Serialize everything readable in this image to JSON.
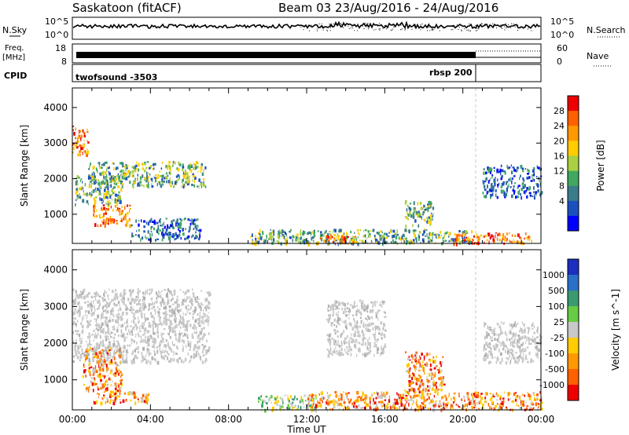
{
  "header": {
    "station": "Saskatoon (fitACF)",
    "beam": "Beam 03",
    "date_range": "23/Aug/2016 - 24/Aug/2016"
  },
  "left_labels": {
    "nsky": "N.Sky",
    "freq_line1": "Freq.",
    "freq_line2": "[MHz]",
    "cpid": "CPID"
  },
  "right_labels": {
    "nsearch": "N.Search",
    "nave": "Nave"
  },
  "noise_axis": {
    "top": "10^5",
    "bottom": "10^0"
  },
  "freq_axis": {
    "left_ticks": [
      "18",
      "8"
    ],
    "right_ticks": [
      "60",
      "0"
    ]
  },
  "cpid_labels": {
    "program1": "twofsound -3503",
    "program2": "rbsp 200"
  },
  "x_axis": {
    "label": "Time UT",
    "ticks": [
      "00:00",
      "04:00",
      "08:00",
      "12:00",
      "16:00",
      "20:00",
      "00:00"
    ]
  },
  "y_axis": {
    "label": "Slant Range [km]",
    "ticks": [
      "1000",
      "2000",
      "3000",
      "4000"
    ]
  },
  "chart_data": [
    {
      "type": "heatmap",
      "panel": "power",
      "xlabel": "Time UT",
      "ylabel": "Slant Range [km]",
      "xlim": [
        0,
        24
      ],
      "ylim": [
        180,
        4550
      ],
      "colorbar": {
        "label": "Power [dB]",
        "ticks": [
          "28",
          "24",
          "20",
          "16",
          "12",
          "8",
          "4"
        ],
        "colors": [
          "#ee0000",
          "#ff6000",
          "#ff9900",
          "#ffcc00",
          "#a8d040",
          "#40a860",
          "#3a7c8c",
          "#1c4fbe",
          "#0000ff"
        ]
      },
      "echo_regions": [
        {
          "t": [
            0.0,
            0.8
          ],
          "r": [
            2700,
            3500
          ],
          "level": "high"
        },
        {
          "t": [
            0.1,
            2.5
          ],
          "r": [
            1300,
            2100
          ],
          "level": "medium"
        },
        {
          "t": [
            0.8,
            6.8
          ],
          "r": [
            1800,
            2500
          ],
          "level": "medium"
        },
        {
          "t": [
            1.0,
            3.0
          ],
          "r": [
            700,
            1300
          ],
          "level": "high"
        },
        {
          "t": [
            3.0,
            6.5
          ],
          "r": [
            300,
            900
          ],
          "level": "low"
        },
        {
          "t": [
            9.0,
            20.5
          ],
          "r": [
            200,
            600
          ],
          "level": "medium"
        },
        {
          "t": [
            12.5,
            14.5
          ],
          "r": [
            200,
            450
          ],
          "level": "high"
        },
        {
          "t": [
            17.0,
            18.5
          ],
          "r": [
            700,
            1400
          ],
          "level": "medium"
        },
        {
          "t": [
            19.5,
            23.5
          ],
          "r": [
            200,
            500
          ],
          "level": "high"
        },
        {
          "t": [
            21.0,
            24.0
          ],
          "r": [
            1500,
            2400
          ],
          "level": "low"
        }
      ]
    },
    {
      "type": "heatmap",
      "panel": "velocity",
      "xlabel": "Time UT",
      "ylabel": "Slant Range [km]",
      "xlim": [
        0,
        24
      ],
      "ylim": [
        180,
        4550
      ],
      "colorbar": {
        "label": "Velocity [m s^-1]",
        "ticks": [
          "1000",
          "500",
          "100",
          "25",
          "-25",
          "-100",
          "-500",
          "-1000"
        ],
        "colors": [
          "#1c2fc0",
          "#2a6fc8",
          "#3a9a70",
          "#66cc44",
          "#c8c8c8",
          "#ffcc00",
          "#ff9900",
          "#ff6000",
          "#ee0000"
        ]
      },
      "echo_regions": [
        {
          "t": [
            0.0,
            7.0
          ],
          "r": [
            1500,
            3500
          ],
          "level": "ground"
        },
        {
          "t": [
            0.5,
            2.5
          ],
          "r": [
            700,
            1900
          ],
          "level": "negative"
        },
        {
          "t": [
            1.0,
            4.0
          ],
          "r": [
            400,
            700
          ],
          "level": "negative"
        },
        {
          "t": [
            9.5,
            12.5
          ],
          "r": [
            200,
            600
          ],
          "level": "positive"
        },
        {
          "t": [
            12.0,
            24.0
          ],
          "r": [
            200,
            700
          ],
          "level": "negative"
        },
        {
          "t": [
            17.0,
            19.0
          ],
          "r": [
            700,
            1800
          ],
          "level": "negative"
        },
        {
          "t": [
            13.0,
            16.0
          ],
          "r": [
            1700,
            3200
          ],
          "level": "ground"
        },
        {
          "t": [
            21.0,
            24.0
          ],
          "r": [
            1500,
            2600
          ],
          "level": "ground"
        }
      ]
    }
  ]
}
